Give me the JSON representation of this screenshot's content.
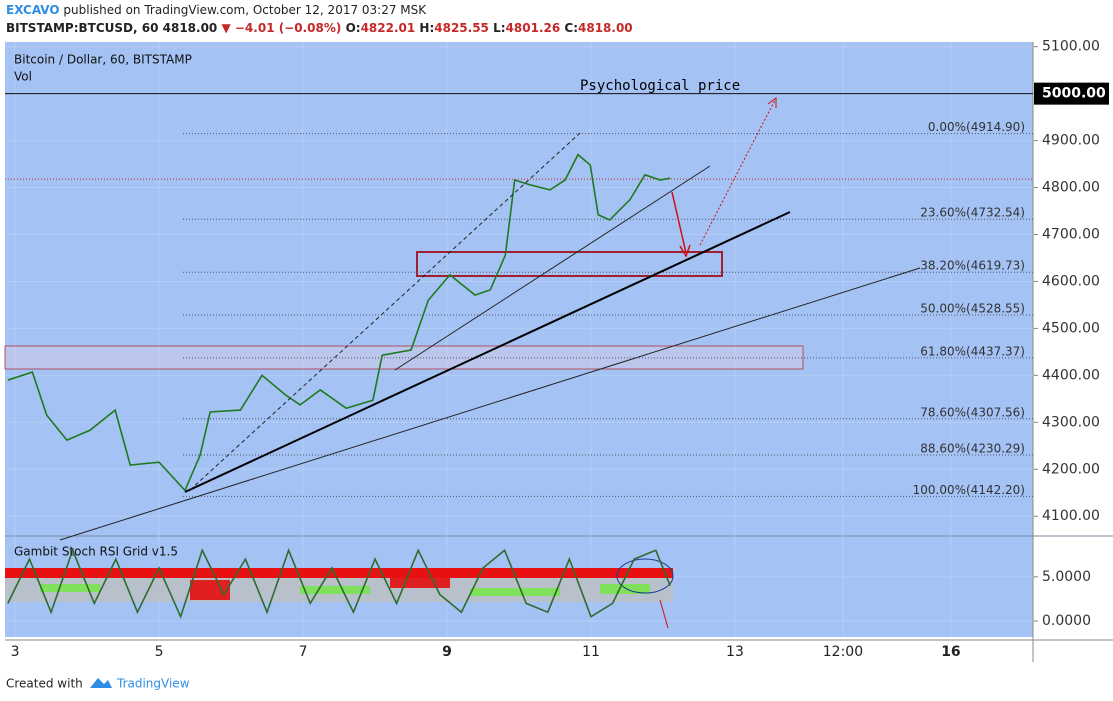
{
  "header": {
    "author": "EXCAVO",
    "published": "published on TradingView.com, October 12, 2017 03:27 MSK",
    "symbol": "BITSTAMP:BTCUSD, 60",
    "last": "4818.00",
    "change": "▼ −4.01 (−0.08%)",
    "ohlc": [
      {
        "label": "O:",
        "value": "4822.01"
      },
      {
        "label": "H:",
        "value": "4825.55"
      },
      {
        "label": "L:",
        "value": "4801.26"
      },
      {
        "label": "C:",
        "value": "4818.00"
      }
    ]
  },
  "chart_data": [
    {
      "type": "line",
      "title": "Bitcoin / Dollar, 60, BITSTAMP",
      "subtitle": "Vol",
      "annotation": "Psychological price",
      "x": [
        2.9,
        3.24,
        3.44,
        3.72,
        4.04,
        4.39,
        4.6,
        5.0,
        5.36,
        5.57,
        5.71,
        6.13,
        6.43,
        6.76,
        6.96,
        7.24,
        7.6,
        7.97,
        8.1,
        8.5,
        8.74,
        9.04,
        9.39,
        9.6,
        9.81,
        9.94,
        10.15,
        10.43,
        10.64,
        10.82,
        10.99,
        11.1,
        11.26,
        11.54,
        11.75,
        11.96,
        12.1
      ],
      "series": [
        {
          "color": "#1f7a1f",
          "values": [
            4390,
            4407,
            4315,
            4262,
            4283,
            4326,
            4209,
            4215,
            4155,
            4230,
            4322,
            4326,
            4400,
            4358,
            4337,
            4369,
            4330,
            4347,
            4443,
            4454,
            4560,
            4614,
            4571,
            4582,
            4656,
            4816,
            4806,
            4795,
            4816,
            4870,
            4848,
            4742,
            4731,
            4774,
            4827,
            4816,
            4820
          ]
        }
      ],
      "xlim": [
        2.86,
        17.14
      ],
      "xticks": [
        3,
        5,
        7,
        9,
        11,
        13,
        {
          "value": 14.5,
          "label": "12:00"
        },
        16
      ],
      "ylim": [
        4060,
        5110
      ],
      "yticks": [
        {
          "value": 4100,
          "label": "4100.00"
        },
        {
          "value": 4200,
          "label": "4200.00"
        },
        {
          "value": 4300,
          "label": "4300.00"
        },
        {
          "value": 4400,
          "label": "4400.00"
        },
        {
          "value": 4500,
          "label": "4500.00"
        },
        {
          "value": 4600,
          "label": "4600.00"
        },
        {
          "value": 4700,
          "label": "4700.00"
        },
        {
          "value": 4800,
          "label": "4800.00"
        },
        {
          "value": 4900,
          "label": "4900.00"
        },
        {
          "value": 5100,
          "label": "5100.00"
        }
      ],
      "level_line": {
        "value": 5000,
        "label": "5000.00"
      },
      "last_price": 4818,
      "fib_levels": [
        {
          "value": 4914.9,
          "label": "0.00%(4914.90)"
        },
        {
          "value": 4732.54,
          "label": "23.60%(4732.54)"
        },
        {
          "value": 4619.73,
          "label": "38.20%(4619.73)"
        },
        {
          "value": 4528.55,
          "label": "50.00%(4528.55)"
        },
        {
          "value": 4437.37,
          "label": "61.80%(4437.37)"
        },
        {
          "value": 4307.56,
          "label": "78.60%(4307.56)"
        },
        {
          "value": 4230.29,
          "label": "88.60%(4230.29)"
        },
        {
          "value": 4142.2,
          "label": "100.00%(4142.20)"
        }
      ]
    },
    {
      "type": "line",
      "title": "Gambit Stoch RSI Grid v1.5",
      "x": [
        2.9,
        3.2,
        3.5,
        3.8,
        4.1,
        4.4,
        4.7,
        5.0,
        5.3,
        5.6,
        5.9,
        6.2,
        6.5,
        6.8,
        7.1,
        7.4,
        7.7,
        8.0,
        8.3,
        8.6,
        8.9,
        9.2,
        9.5,
        9.8,
        10.1,
        10.4,
        10.7,
        11.0,
        11.3,
        11.6,
        11.9,
        12.1
      ],
      "series": [
        {
          "color": "#2e6b2e",
          "values": [
            2,
            7,
            1,
            8,
            2,
            7,
            1,
            6,
            0.5,
            8,
            3,
            7,
            1,
            8,
            2,
            6,
            1,
            7,
            2,
            8,
            3,
            1,
            6,
            8,
            2,
            1,
            7,
            0.5,
            2,
            7,
            8,
            4
          ]
        }
      ],
      "xlim": [
        2.86,
        17.14
      ],
      "ylim": [
        -1.8,
        9.5
      ],
      "yticks": [
        {
          "value": 5,
          "label": "5.0000"
        },
        {
          "value": 0,
          "label": "0.0000"
        }
      ]
    }
  ],
  "footer": {
    "created": "Created with",
    "brand": "TradingView"
  }
}
